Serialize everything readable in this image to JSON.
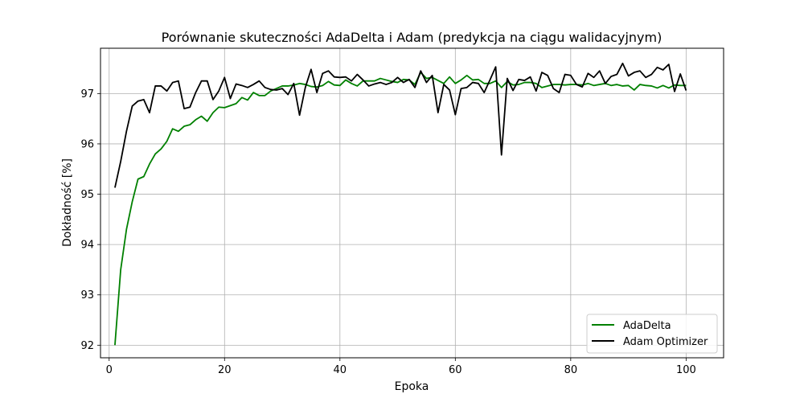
{
  "chart_data": {
    "type": "line",
    "title": "Porównanie skuteczności AdaDelta i Adam (predykcja na ciągu walidacyjnym)",
    "xlabel": "Epoka",
    "ylabel": "Dokładność [%]",
    "xlim": [
      -1.5,
      106.5
    ],
    "ylim": [
      91.75,
      97.9
    ],
    "xticks": [
      0,
      20,
      40,
      60,
      80,
      100
    ],
    "yticks": [
      92,
      93,
      94,
      95,
      96,
      97
    ],
    "grid": true,
    "legend_position": "bottom-right",
    "series": [
      {
        "name": "AdaDelta",
        "color": "#008000",
        "x": [
          1,
          2,
          3,
          4,
          5,
          6,
          7,
          8,
          9,
          10,
          11,
          12,
          13,
          14,
          15,
          16,
          17,
          18,
          19,
          20,
          21,
          22,
          23,
          24,
          25,
          26,
          27,
          28,
          29,
          30,
          31,
          32,
          33,
          34,
          35,
          36,
          37,
          38,
          39,
          40,
          41,
          42,
          43,
          44,
          45,
          46,
          47,
          48,
          49,
          50,
          51,
          52,
          53,
          54,
          55,
          56,
          57,
          58,
          59,
          60,
          61,
          62,
          63,
          64,
          65,
          66,
          67,
          68,
          69,
          70,
          71,
          72,
          73,
          74,
          75,
          76,
          77,
          78,
          79,
          80,
          81,
          82,
          83,
          84,
          85,
          86,
          87,
          88,
          89,
          90,
          91,
          92,
          93,
          94,
          95,
          96,
          97,
          98,
          99,
          100
        ],
        "values": [
          92.0,
          93.5,
          94.3,
          94.85,
          95.3,
          95.35,
          95.6,
          95.8,
          95.9,
          96.05,
          96.3,
          96.25,
          96.35,
          96.38,
          96.48,
          96.55,
          96.45,
          96.62,
          96.73,
          96.72,
          96.76,
          96.8,
          96.92,
          96.87,
          97.02,
          96.96,
          96.96,
          97.05,
          97.1,
          97.15,
          97.15,
          97.17,
          97.2,
          97.18,
          97.14,
          97.13,
          97.16,
          97.24,
          97.17,
          97.16,
          97.27,
          97.2,
          97.15,
          97.25,
          97.25,
          97.25,
          97.3,
          97.27,
          97.24,
          97.22,
          97.28,
          97.27,
          97.18,
          97.42,
          97.3,
          97.32,
          97.26,
          97.2,
          97.33,
          97.2,
          97.27,
          97.36,
          97.27,
          97.28,
          97.2,
          97.2,
          97.25,
          97.12,
          97.24,
          97.17,
          97.18,
          97.22,
          97.22,
          97.2,
          97.12,
          97.15,
          97.18,
          97.18,
          97.17,
          97.18,
          97.18,
          97.17,
          97.2,
          97.16,
          97.18,
          97.2,
          97.16,
          97.18,
          97.15,
          97.16,
          97.07,
          97.18,
          97.16,
          97.15,
          97.11,
          97.16,
          97.11,
          97.17,
          97.16,
          97.16
        ]
      },
      {
        "name": "Adam Optimizer",
        "color": "#000000",
        "x": [
          1,
          2,
          3,
          4,
          5,
          6,
          7,
          8,
          9,
          10,
          11,
          12,
          13,
          14,
          15,
          16,
          17,
          18,
          19,
          20,
          21,
          22,
          23,
          24,
          25,
          26,
          27,
          28,
          29,
          30,
          31,
          32,
          33,
          34,
          35,
          36,
          37,
          38,
          39,
          40,
          41,
          42,
          43,
          44,
          45,
          46,
          47,
          48,
          49,
          50,
          51,
          52,
          53,
          54,
          55,
          56,
          57,
          58,
          59,
          60,
          61,
          62,
          63,
          64,
          65,
          66,
          67,
          68,
          69,
          70,
          71,
          72,
          73,
          74,
          75,
          76,
          77,
          78,
          79,
          80,
          81,
          82,
          83,
          84,
          85,
          86,
          87,
          88,
          89,
          90,
          91,
          92,
          93,
          94,
          95,
          96,
          97,
          98,
          99,
          100
        ],
        "values": [
          95.13,
          95.65,
          96.25,
          96.75,
          96.85,
          96.88,
          96.62,
          97.15,
          97.15,
          97.05,
          97.22,
          97.25,
          96.7,
          96.73,
          97.02,
          97.25,
          97.25,
          96.88,
          97.05,
          97.32,
          96.9,
          97.19,
          97.16,
          97.12,
          97.18,
          97.25,
          97.12,
          97.08,
          97.07,
          97.1,
          96.98,
          97.2,
          96.57,
          97.12,
          97.48,
          97.02,
          97.4,
          97.45,
          97.33,
          97.32,
          97.33,
          97.25,
          97.38,
          97.27,
          97.15,
          97.19,
          97.22,
          97.18,
          97.22,
          97.32,
          97.22,
          97.28,
          97.12,
          97.45,
          97.22,
          97.36,
          96.62,
          97.18,
          97.07,
          96.58,
          97.1,
          97.12,
          97.22,
          97.2,
          97.02,
          97.27,
          97.53,
          95.78,
          97.3,
          97.06,
          97.28,
          97.26,
          97.33,
          97.05,
          97.42,
          97.36,
          97.1,
          97.02,
          97.38,
          97.36,
          97.18,
          97.13,
          97.4,
          97.32,
          97.45,
          97.2,
          97.34,
          97.38,
          97.6,
          97.35,
          97.42,
          97.45,
          97.32,
          97.38,
          97.52,
          97.47,
          97.58,
          97.04,
          97.39,
          97.06
        ]
      }
    ]
  }
}
